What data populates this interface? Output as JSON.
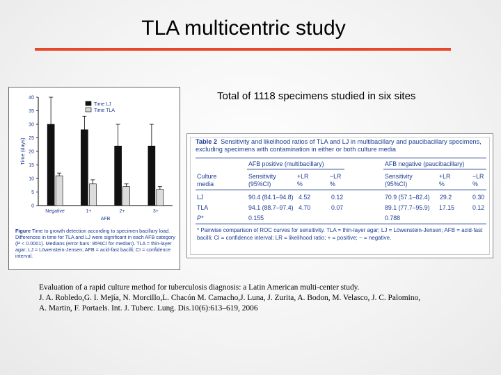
{
  "slide": {
    "title": "TLA multicentric study",
    "subtitle": "Total of 1118 specimens studied in six sites",
    "accent_color": "#e8482a"
  },
  "figure": {
    "chart_data": {
      "type": "bar",
      "categories": [
        "Negative",
        "1+",
        "2+",
        "3+"
      ],
      "series": [
        {
          "name": "Time LJ",
          "values": [
            30,
            28,
            22,
            22
          ],
          "color": "#111111"
        },
        {
          "name": "Time TLA",
          "values": [
            11,
            8,
            7,
            6
          ],
          "color": "#dcdcdc"
        }
      ],
      "errors_upper": [
        [
          40,
          33,
          30,
          30
        ],
        [
          12,
          9.5,
          8,
          7
        ]
      ],
      "xlabel": "AFB",
      "ylabel": "Time (days)",
      "ylim": [
        0,
        40
      ],
      "yticks": [
        "0",
        "5",
        "10",
        "15",
        "20",
        "25",
        "30",
        "35",
        "40"
      ],
      "legend": "top-right"
    },
    "caption_label": "Figure",
    "caption_text": "Time to growth detection according to specimen bacillary load. Differences in time for TLA and LJ were significant in each AFB category (P < 0.0001). Medians (error bars: 95%CI for median). TLA = thin-layer agar; LJ = Löwenstein-Jensen; AFB = acid-fast bacilli; CI = confidence interval."
  },
  "table": {
    "label": "Table 2",
    "title": "Sensitivity and likelihood ratios of TLA and LJ in multibacillary and paucibacillary specimens, excluding specimens with contamination in either or both culture media",
    "group_multi": "AFB positive (multibacillary)",
    "group_pauci": "AFB negative (paucibacillary)",
    "col_media": "Culture media",
    "col_sens": "Sensitivity (95%CI)",
    "col_plr": "+LR %",
    "col_nlr": "−LR %",
    "rows": [
      {
        "media": "LJ",
        "sens1": "90.4 (84.1–94.8)",
        "plr1": "4.52",
        "nlr1": "0.12",
        "sens2": "70.9 (57.1–82.4)",
        "plr2": "29.2",
        "nlr2": "0.30"
      },
      {
        "media": "TLA",
        "sens1": "94.1 (88.7–97.4)",
        "plr1": "4.70",
        "nlr1": "0.07",
        "sens2": "89.1 (77.7–95.9)",
        "plr2": "17.15",
        "nlr2": "0.12"
      },
      {
        "media": "P*",
        "sens1": "0.155",
        "plr1": "",
        "nlr1": "",
        "sens2": "0.788",
        "plr2": "",
        "nlr2": ""
      }
    ],
    "footnote": "* Pairwise comparison of ROC curves for sensitivity. TLA = thin-layer agar; LJ = Löwenstein-Jensen; AFB = acid-fast bacilli; CI = confidence interval; LR = likelihood ratio; + = positive; − = negative."
  },
  "citation": {
    "line1": "Evaluation of a rapid culture method for tuberculosis diagnosis: a Latin American multi-center study.",
    "line2": "J. A. Robledo,G. I. Mejía, N. Morcillo,L. Chacón M. Camacho,J. Luna, J. Zurita, A. Bodon, M. Velasco, J. C. Palomino,",
    "line3": "A. Martin, F. Portaels. Int. J. Tuberc. Lung. Dis.10(6):613–619, 2006"
  }
}
